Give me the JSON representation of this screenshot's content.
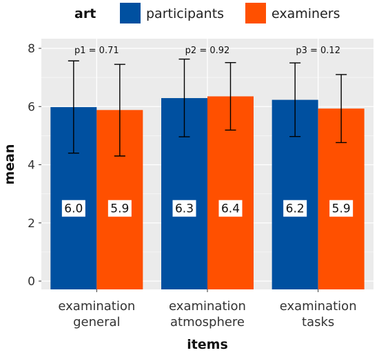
{
  "chart_data": {
    "type": "bar",
    "legend": {
      "title": "art",
      "position": "top",
      "entries": [
        {
          "label": "participants",
          "color": "#0050A0"
        },
        {
          "label": "examiners",
          "color": "#FF5000"
        }
      ]
    },
    "xlabel": "items",
    "ylabel": "mean",
    "ylim": [
      0,
      8
    ],
    "yticks": [
      "0",
      "2",
      "4",
      "6",
      "8"
    ],
    "grid": true,
    "categories": [
      {
        "lines": [
          "examination",
          "general"
        ]
      },
      {
        "lines": [
          "examination",
          "atmosphere"
        ]
      },
      {
        "lines": [
          "examination",
          "tasks"
        ]
      }
    ],
    "series": [
      {
        "name": "participants",
        "color": "#0050A0",
        "values": [
          5.98,
          6.29,
          6.23
        ],
        "labels": [
          "6.0",
          "6.3",
          "6.2"
        ],
        "error_low": [
          4.4,
          4.96,
          4.97
        ],
        "error_high": [
          7.57,
          7.63,
          7.5
        ]
      },
      {
        "name": "examiners",
        "color": "#FF5000",
        "values": [
          5.88,
          6.35,
          5.93
        ],
        "labels": [
          "5.9",
          "6.4",
          "5.9"
        ],
        "error_low": [
          4.3,
          5.19,
          4.76
        ],
        "error_high": [
          7.45,
          7.51,
          7.1
        ]
      }
    ],
    "annotations": [
      "p1 = 0.71",
      "p2 = 0.92",
      "p3 = 0.12"
    ],
    "value_label_level": 2.5,
    "panel_color": "#EBEBEB"
  }
}
